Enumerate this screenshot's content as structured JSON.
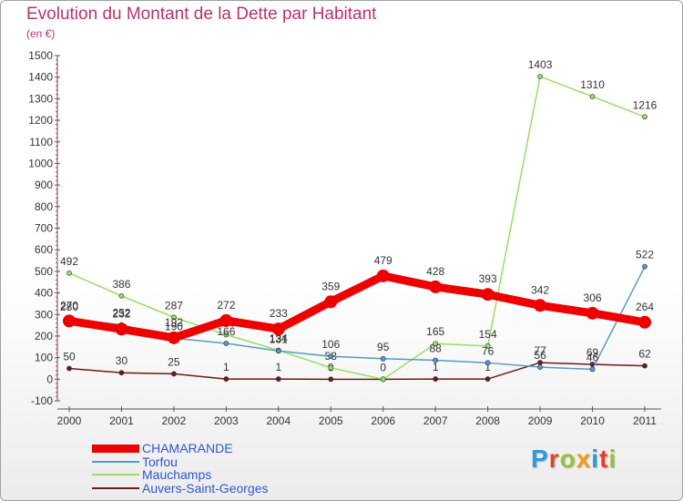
{
  "title": "Evolution du Montant de la Dette par Habitant",
  "subtitle": "(en €)",
  "logo": {
    "text": "Proxiti",
    "colors": [
      "#3399dd",
      "#e8402a",
      "#99c23a",
      "#f29b1e",
      "#3399dd",
      "#e8402a",
      "#99c23a"
    ]
  },
  "chart_data": {
    "type": "line",
    "categories": [
      "2000",
      "2001",
      "2002",
      "2003",
      "2004",
      "2005",
      "2006",
      "2007",
      "2008",
      "2009",
      "2010",
      "2011"
    ],
    "ylim": [
      -100,
      1500
    ],
    "yticks": [
      "-100",
      "0",
      "100",
      "200",
      "300",
      "400",
      "500",
      "600",
      "700",
      "800",
      "900",
      "1000",
      "1100",
      "1200",
      "1300",
      "1400",
      "1500"
    ],
    "grid": false,
    "legend_position": "bottom-left",
    "series": [
      {
        "name": "Auvers-Saint-Georges",
        "color": "#6b1a1a",
        "width": 1.5,
        "marker": 2.6,
        "values": [
          50,
          30,
          25,
          1,
          1,
          0,
          0,
          1,
          1,
          77,
          69,
          62
        ],
        "labels": [
          "50",
          "30",
          "25",
          "1",
          "1",
          "0",
          "0",
          "1",
          "1",
          "77",
          "69",
          "62"
        ]
      },
      {
        "name": "Mauchamps",
        "color": "#99dd66",
        "width": 1.5,
        "marker": 2.6,
        "values": [
          492,
          386,
          287,
          206,
          134,
          53,
          0,
          165,
          154,
          1403,
          1310,
          1216
        ],
        "labels": [
          "492",
          "386",
          "287",
          "206",
          "134",
          "53",
          "",
          "165",
          "154",
          "1403",
          "1310",
          "1216"
        ]
      },
      {
        "name": "Torfou",
        "color": "#5599cc",
        "width": 1.5,
        "marker": 2.6,
        "values": [
          280,
          252,
          190,
          166,
          131,
          106,
          95,
          88,
          76,
          56,
          46,
          522
        ],
        "labels": [
          "280",
          "252",
          "190",
          "166",
          "131",
          "106",
          "95",
          "88",
          "76",
          "56",
          "46",
          "522"
        ]
      },
      {
        "name": "CHAMARANDE",
        "color": "#ee0000",
        "width": 9,
        "marker": 7,
        "values": [
          270,
          232,
          192,
          272,
          233,
          359,
          479,
          428,
          393,
          342,
          306,
          264
        ],
        "labels": [
          "270",
          "232",
          "192",
          "272",
          "233",
          "359",
          "479",
          "428",
          "393",
          "342",
          "306",
          "264"
        ]
      }
    ],
    "legend": [
      {
        "name": "CHAMARANDE",
        "color": "#ee0000",
        "width": 9
      },
      {
        "name": "Torfou",
        "color": "#5599cc",
        "width": 2
      },
      {
        "name": "Mauchamps",
        "color": "#99dd66",
        "width": 2
      },
      {
        "name": "Auvers-Saint-Georges",
        "color": "#6b1a1a",
        "width": 2
      }
    ]
  }
}
